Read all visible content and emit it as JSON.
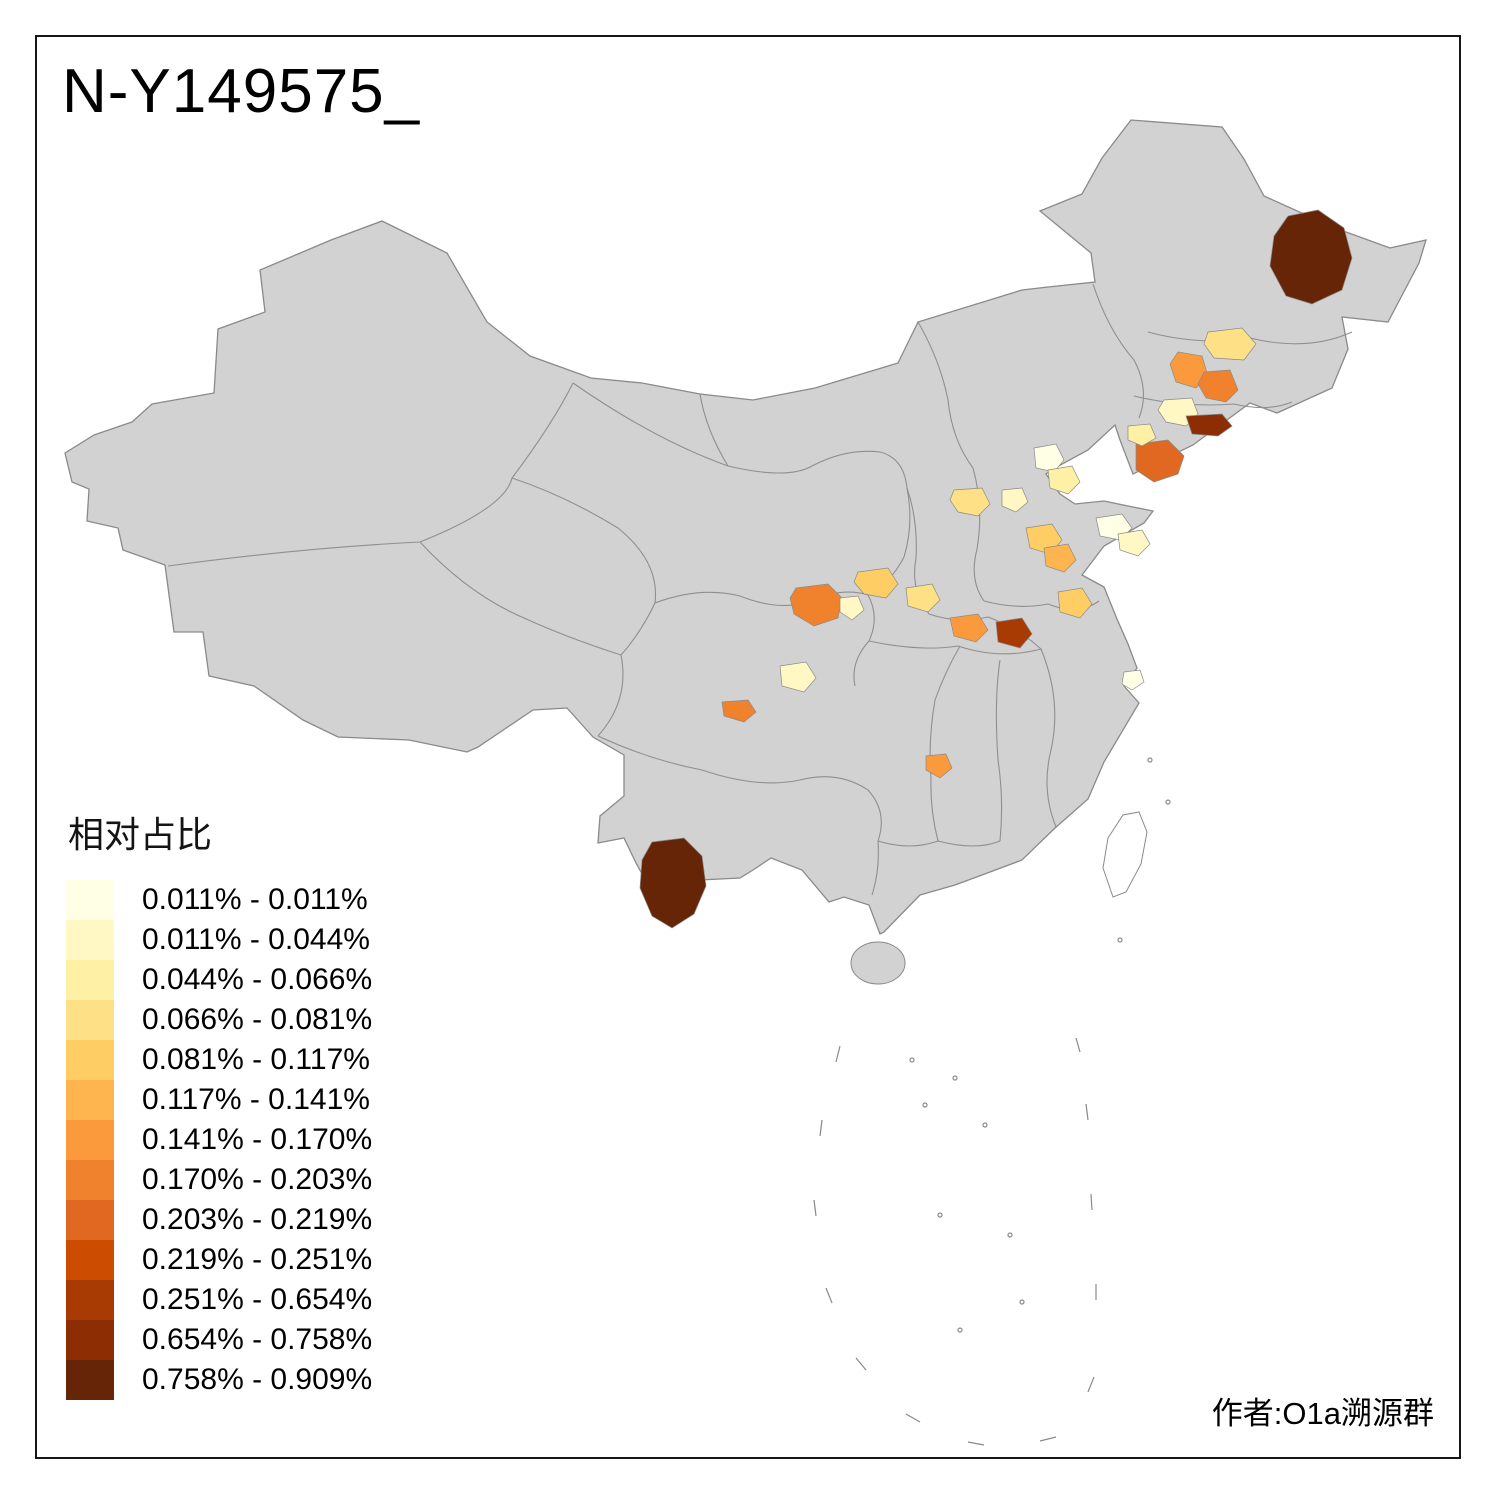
{
  "page": {
    "title": "N-Y149575_",
    "attribution": "作者:O1a溯源群"
  },
  "legend": {
    "title": "相对占比",
    "items": [
      {
        "label": "0.011% - 0.011%",
        "color": "#FFFFE5"
      },
      {
        "label": "0.011% - 0.044%",
        "color": "#FFF8C4"
      },
      {
        "label": "0.044% - 0.066%",
        "color": "#FEF0A5"
      },
      {
        "label": "0.066% - 0.081%",
        "color": "#FEE187"
      },
      {
        "label": "0.081% - 0.117%",
        "color": "#FECE65"
      },
      {
        "label": "0.117% - 0.141%",
        "color": "#FEB54F"
      },
      {
        "label": "0.141% - 0.170%",
        "color": "#FB9A3C"
      },
      {
        "label": "0.170% - 0.203%",
        "color": "#F0822D"
      },
      {
        "label": "0.203% - 0.219%",
        "color": "#E06820"
      },
      {
        "label": "0.219% - 0.251%",
        "color": "#CC4C02"
      },
      {
        "label": "0.251% - 0.654%",
        "color": "#A83A03"
      },
      {
        "label": "0.654% - 0.758%",
        "color": "#8C2D04"
      },
      {
        "label": "0.758% - 0.909%",
        "color": "#662506"
      }
    ]
  },
  "map": {
    "base_fill": "#D2D2D2",
    "boundary_color": "#8A8A8A",
    "island_fill": "#FFFFFF",
    "regions": [
      {
        "name": "heilongjiang-large",
        "color": "#662506"
      },
      {
        "name": "jilin-north",
        "color": "#FEE187"
      },
      {
        "name": "jilin-west",
        "color": "#FB9A3C"
      },
      {
        "name": "jilin-central",
        "color": "#F0822D"
      },
      {
        "name": "jilin-south",
        "color": "#FFF8C4"
      },
      {
        "name": "liaoning-east-dark",
        "color": "#8C2D04"
      },
      {
        "name": "liaoning-peninsula",
        "color": "#E06820"
      },
      {
        "name": "liaoning-west-pale",
        "color": "#FEF0A5"
      },
      {
        "name": "beijing-area-pale",
        "color": "#FFFFE5"
      },
      {
        "name": "hebei-pale",
        "color": "#FEF0A5"
      },
      {
        "name": "shanxi-yellow",
        "color": "#FEE187"
      },
      {
        "name": "hebei-south-pale",
        "color": "#FFF8C4"
      },
      {
        "name": "shandong-peninsula-pale",
        "color": "#FFFFE5"
      },
      {
        "name": "shandong-east-pale",
        "color": "#FFF8C4"
      },
      {
        "name": "hebei-shandong-yellow",
        "color": "#FECE65"
      },
      {
        "name": "shandong-west-orange",
        "color": "#FEB54F"
      },
      {
        "name": "shaanxi-north-yellow",
        "color": "#FECE65"
      },
      {
        "name": "ningxia-orange",
        "color": "#F0822D"
      },
      {
        "name": "ningxia-east-pale",
        "color": "#FFF8C4"
      },
      {
        "name": "shaanxi-yellow",
        "color": "#FEE187"
      },
      {
        "name": "jiangsu-north-yellow",
        "color": "#FECE65"
      },
      {
        "name": "henan-orange",
        "color": "#FB9A3C"
      },
      {
        "name": "henan-east-dark",
        "color": "#A83A03"
      },
      {
        "name": "gansu-south-pale",
        "color": "#FFF8C4"
      },
      {
        "name": "sichuan-chengdu-orange",
        "color": "#F0822D"
      },
      {
        "name": "hunan-west-orange",
        "color": "#FB9A3C"
      },
      {
        "name": "yunnan-large-dark",
        "color": "#662506"
      },
      {
        "name": "shanghai-pale",
        "color": "#FFFFE5"
      }
    ]
  }
}
